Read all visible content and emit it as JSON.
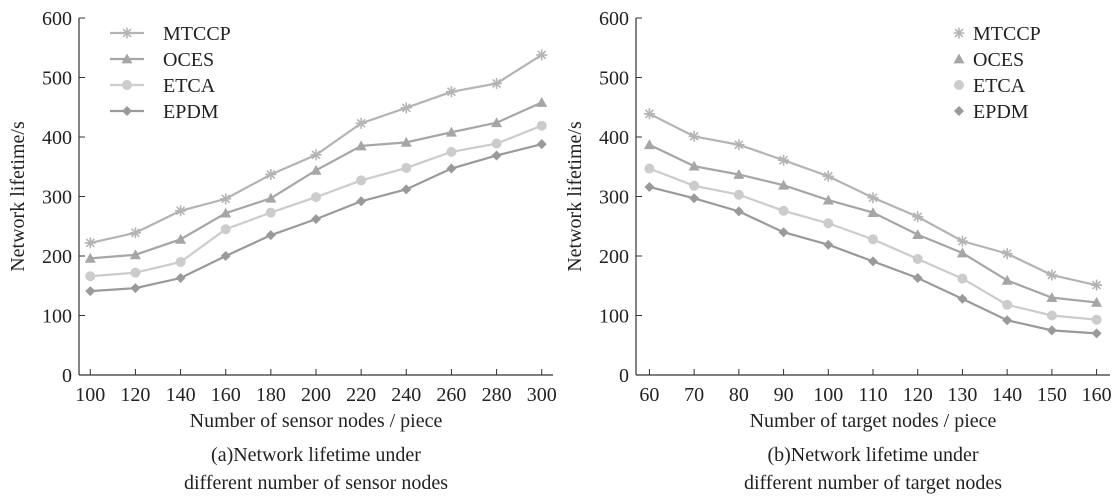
{
  "chart_data": [
    {
      "type": "line",
      "caption_line1": "(a)Network lifetime under",
      "caption_line2": "different number of sensor nodes",
      "xlabel": "Number of sensor nodes / piece",
      "ylabel": "Network lifetime/s",
      "x": [
        100,
        120,
        140,
        160,
        180,
        200,
        220,
        240,
        260,
        280,
        300
      ],
      "xlim": [
        95,
        305
      ],
      "ylim": [
        0,
        600
      ],
      "yticks": [
        0,
        100,
        200,
        300,
        400,
        500,
        600
      ],
      "legend_position": "top-left",
      "legend_lines": true,
      "series": [
        {
          "name": "MTCCP",
          "marker": "asterisk",
          "color": "#b4b4b4",
          "values": [
            222,
            239,
            276,
            296,
            337,
            370,
            423,
            449,
            476,
            490,
            538
          ]
        },
        {
          "name": "OCES",
          "marker": "triangle",
          "color": "#a6a6a6",
          "values": [
            196,
            202,
            228,
            272,
            297,
            344,
            385,
            391,
            408,
            424,
            458
          ]
        },
        {
          "name": "ETCA",
          "marker": "circle",
          "color": "#cccccc",
          "values": [
            166,
            172,
            190,
            245,
            273,
            299,
            327,
            348,
            375,
            389,
            419
          ]
        },
        {
          "name": "EPDM",
          "marker": "diamond",
          "color": "#9a9a9a",
          "values": [
            141,
            146,
            163,
            200,
            235,
            262,
            292,
            312,
            347,
            369,
            388
          ]
        }
      ]
    },
    {
      "type": "line",
      "caption_line1": "(b)Network lifetime under",
      "caption_line2": "different number of target nodes",
      "xlabel": "Number of  target nodes / piece",
      "ylabel": "Network lifetime/s",
      "x": [
        60,
        70,
        80,
        90,
        100,
        110,
        120,
        130,
        140,
        150,
        160
      ],
      "xlim": [
        57,
        163
      ],
      "ylim": [
        0,
        600
      ],
      "yticks": [
        0,
        100,
        200,
        300,
        400,
        500,
        600
      ],
      "legend_position": "top-right",
      "legend_lines": false,
      "series": [
        {
          "name": "MTCCP",
          "marker": "asterisk",
          "color": "#b4b4b4",
          "values": [
            439,
            401,
            387,
            361,
            334,
            298,
            266,
            225,
            204,
            168,
            151
          ]
        },
        {
          "name": "OCES",
          "marker": "triangle",
          "color": "#a6a6a6",
          "values": [
            387,
            351,
            337,
            319,
            294,
            273,
            236,
            205,
            159,
            130,
            122
          ]
        },
        {
          "name": "ETCA",
          "marker": "circle",
          "color": "#cccccc",
          "values": [
            347,
            318,
            303,
            276,
            255,
            228,
            195,
            162,
            118,
            100,
            93
          ]
        },
        {
          "name": "EPDM",
          "marker": "diamond",
          "color": "#9a9a9a",
          "values": [
            316,
            297,
            275,
            240,
            219,
            191,
            163,
            128,
            92,
            75,
            70
          ]
        }
      ]
    }
  ]
}
